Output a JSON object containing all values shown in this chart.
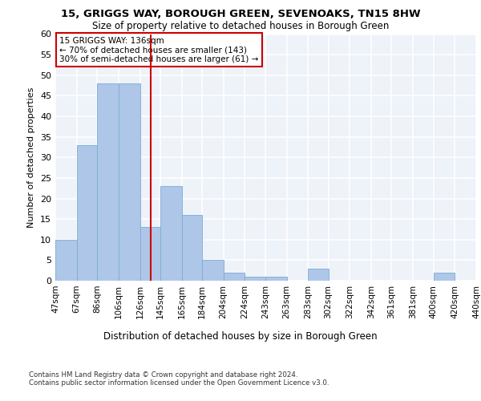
{
  "title": "15, GRIGGS WAY, BOROUGH GREEN, SEVENOAKS, TN15 8HW",
  "subtitle": "Size of property relative to detached houses in Borough Green",
  "xlabel": "Distribution of detached houses by size in Borough Green",
  "ylabel": "Number of detached properties",
  "bar_color": "#aec6e8",
  "bar_edge_color": "#7aadd4",
  "vline_color": "#cc0000",
  "vline_x": 136,
  "annotation_line1": "15 GRIGGS WAY: 136sqm",
  "annotation_line2": "← 70% of detached houses are smaller (143)",
  "annotation_line3": "30% of semi-detached houses are larger (61) →",
  "annotation_box_color": "#cc0000",
  "bin_edges": [
    47,
    67,
    86,
    106,
    126,
    145,
    165,
    184,
    204,
    224,
    243,
    263,
    283,
    302,
    322,
    342,
    361,
    381,
    400,
    420,
    440
  ],
  "bar_heights": [
    10,
    33,
    48,
    48,
    13,
    23,
    16,
    5,
    2,
    1,
    1,
    0,
    3,
    0,
    0,
    0,
    0,
    0,
    2,
    0
  ],
  "ylim": [
    0,
    60
  ],
  "yticks": [
    0,
    5,
    10,
    15,
    20,
    25,
    30,
    35,
    40,
    45,
    50,
    55,
    60
  ],
  "footer_line1": "Contains HM Land Registry data © Crown copyright and database right 2024.",
  "footer_line2": "Contains public sector information licensed under the Open Government Licence v3.0.",
  "bg_color": "#eef2f9",
  "grid_color": "#ffffff"
}
